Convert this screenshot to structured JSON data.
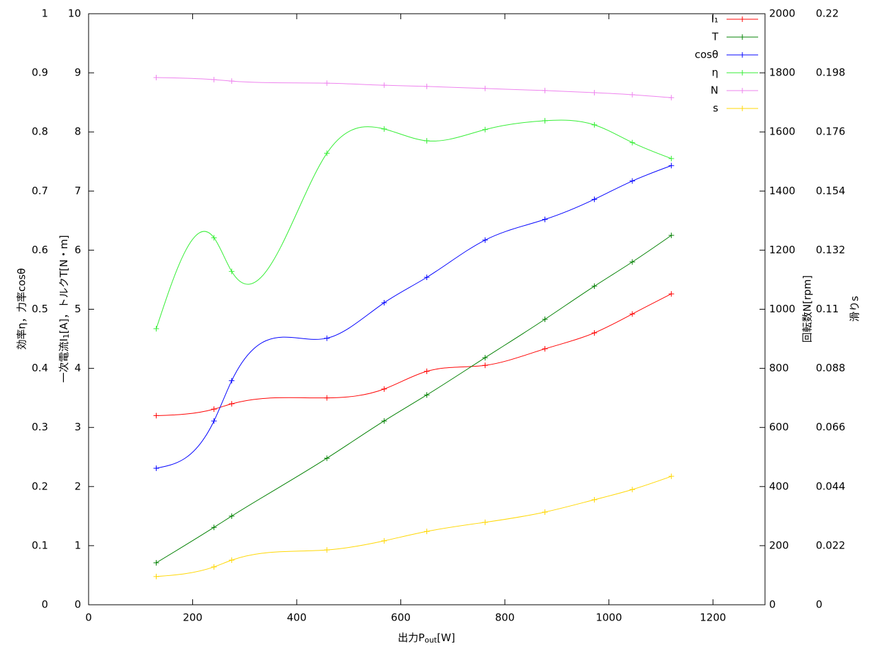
{
  "chart_data": {
    "type": "line",
    "xlabel": [
      "出力P",
      "out",
      "[W]"
    ],
    "ylabel": "効率η，力率cosθ",
    "y3label": [
      "一次電流I",
      "1",
      "[A]，トルクT[N・m]"
    ],
    "y2label": "回転数N[rpm]",
    "y4label": "滑りs",
    "xlim": [
      0,
      1300
    ],
    "xticks": [
      0,
      200,
      400,
      600,
      800,
      1000,
      1200
    ],
    "ylim": [
      0,
      1
    ],
    "yticks": [
      0,
      0.1,
      0.2,
      0.3,
      0.4,
      0.5,
      0.6,
      0.7,
      0.8,
      0.9,
      1
    ],
    "y3lim": [
      0,
      10
    ],
    "y3ticks": [
      0,
      1,
      2,
      3,
      4,
      5,
      6,
      7,
      8,
      9,
      10
    ],
    "y2lim": [
      0,
      2000
    ],
    "y2ticks": [
      0,
      200,
      400,
      600,
      800,
      1000,
      1200,
      1400,
      1600,
      1800,
      2000
    ],
    "y4lim": [
      0,
      0.22
    ],
    "y4ticks": [
      0,
      0.022,
      0.044,
      0.066,
      0.088,
      0.11,
      0.132,
      0.154,
      0.176,
      0.198,
      0.22
    ],
    "legend": "top-right",
    "x": [
      130,
      241,
      275,
      458,
      568,
      650,
      762,
      877,
      972,
      1045,
      1120
    ],
    "series": [
      {
        "name": "I₁",
        "color": "#ff0000",
        "axis": "y3",
        "values": [
          3.2,
          3.31,
          3.4,
          3.5,
          3.65,
          3.95,
          4.05,
          4.33,
          4.6,
          4.92,
          5.26
        ]
      },
      {
        "name": "T",
        "color": "#008000",
        "axis": "y3",
        "values": [
          0.71,
          1.31,
          1.5,
          2.48,
          3.11,
          3.55,
          4.18,
          4.83,
          5.39,
          5.8,
          6.25
        ]
      },
      {
        "name": "cosθ",
        "color": "#0000ff",
        "axis": "y",
        "values": [
          0.231,
          0.311,
          0.379,
          0.451,
          0.511,
          0.554,
          0.617,
          0.652,
          0.686,
          0.717,
          0.743
        ]
      },
      {
        "name": "η",
        "color": "#33ee33",
        "axis": "y",
        "values": [
          0.467,
          0.621,
          0.564,
          0.764,
          0.805,
          0.785,
          0.804,
          0.819,
          0.812,
          0.782,
          0.755
        ]
      },
      {
        "name": "N",
        "color": "#ee82ee",
        "axis": "y2",
        "values": [
          1784,
          1777,
          1772,
          1765,
          1758,
          1754,
          1747,
          1740,
          1733,
          1726,
          1716
        ]
      },
      {
        "name": "s",
        "color": "#ffd700",
        "axis": "y4",
        "values": [
          0.0105,
          0.0141,
          0.0166,
          0.0204,
          0.0238,
          0.0273,
          0.0307,
          0.0345,
          0.0391,
          0.0429,
          0.0478
        ]
      }
    ]
  }
}
